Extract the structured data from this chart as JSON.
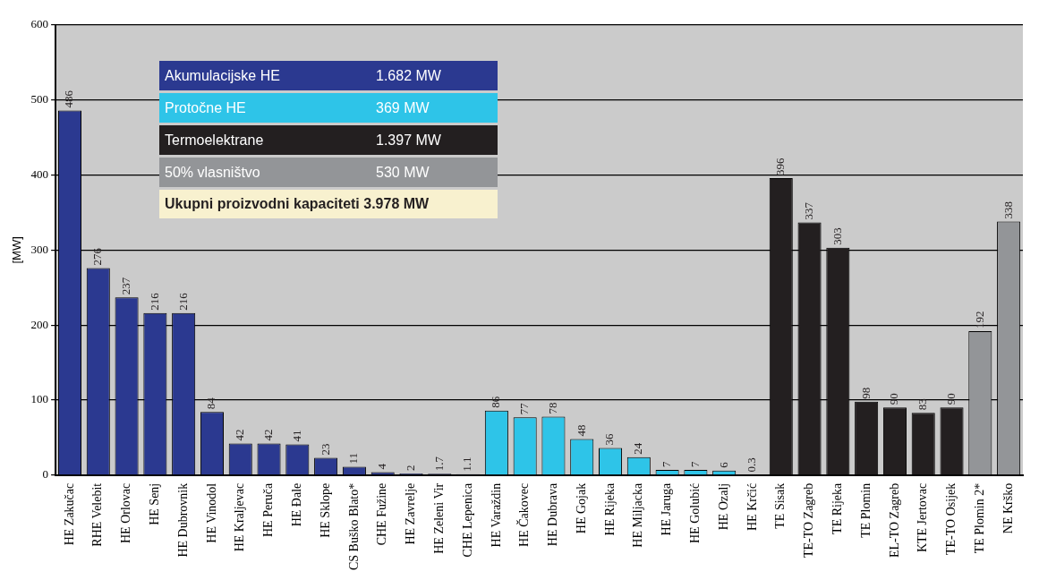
{
  "chart_data": {
    "type": "bar",
    "ylabel": "[MW]",
    "categories": [
      "HE Zakučac",
      "RHE Velebit",
      "HE Orlovac",
      "HE Senj",
      "HE Dubrovnik",
      "HE Vinodol",
      "HE Kraljevac",
      "HE Peruča",
      "HE Đale",
      "HE Sklope",
      "CS Buško Blato*",
      "CHE Fužine",
      "HE Zavrelje",
      "HE Zeleni Vir",
      "CHE Lepenica",
      "HE Varaždin",
      "HE Čakovec",
      "HE Dubrava",
      "HE Gojak",
      "HE Rijeka",
      "HE Miljacka",
      "HE Jaruga",
      "HE Golubić",
      "HE Ozalj",
      "HE Krčić",
      "TE Sisak",
      "TE-TO Zagreb",
      "TE Rijeka",
      "TE Plomin",
      "EL-TO Zagreb",
      "KTE Jertovac",
      "TE-TO Osijek",
      "TE Plomin 2*",
      "NE Krško"
    ],
    "series": [
      {
        "name": "Akumulacijske HE",
        "color": "#2b3990",
        "values": [
          486,
          276,
          237,
          216,
          216,
          84,
          42,
          42,
          41,
          23,
          11,
          4,
          2,
          1.7,
          1.1,
          null,
          null,
          null,
          null,
          null,
          null,
          null,
          null,
          null,
          null,
          null,
          null,
          null,
          null,
          null,
          null,
          null,
          null,
          null
        ]
      },
      {
        "name": "Protočne HE",
        "color": "#2ec4e8",
        "values": [
          null,
          null,
          null,
          null,
          null,
          null,
          null,
          null,
          null,
          null,
          null,
          null,
          null,
          null,
          null,
          86,
          77,
          78,
          48,
          36,
          24,
          7,
          7,
          6,
          0.3,
          null,
          null,
          null,
          null,
          null,
          null,
          null,
          null,
          null
        ]
      },
      {
        "name": "Termoelektrane",
        "color": "#231f20",
        "values": [
          null,
          null,
          null,
          null,
          null,
          null,
          null,
          null,
          null,
          null,
          null,
          null,
          null,
          null,
          null,
          null,
          null,
          null,
          null,
          null,
          null,
          null,
          null,
          null,
          null,
          396,
          337,
          303,
          98,
          90,
          83,
          90,
          null,
          null
        ]
      },
      {
        "name": "50% vlasništvo",
        "color": "#939598",
        "values": [
          null,
          null,
          null,
          null,
          null,
          null,
          null,
          null,
          null,
          null,
          null,
          null,
          null,
          null,
          null,
          null,
          null,
          null,
          null,
          null,
          null,
          null,
          null,
          null,
          null,
          null,
          null,
          null,
          null,
          null,
          null,
          null,
          192,
          338
        ]
      }
    ],
    "stacked": true,
    "ylim": [
      0,
      600
    ],
    "yticks": [
      0,
      100,
      200,
      300,
      400,
      500,
      600
    ],
    "grid": "y",
    "data_labels": true,
    "legend": "top left",
    "annotations": [
      "1.682 MW",
      "369 MW",
      "1.397 MW",
      "530 MW",
      "Ukupni proizvodni kapaciteti 3.978 MW"
    ]
  }
}
